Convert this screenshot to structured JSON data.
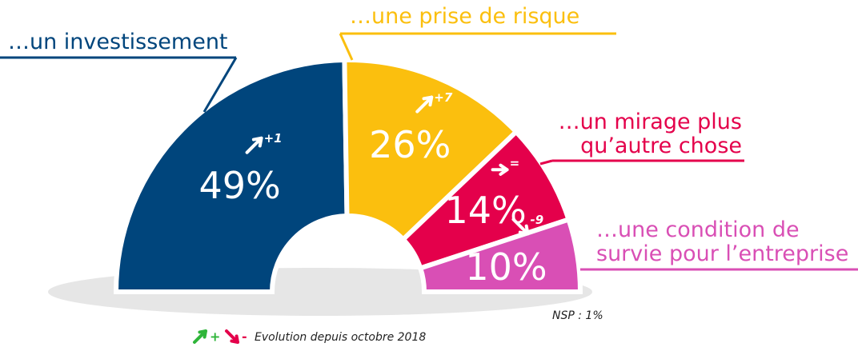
{
  "chart_data": {
    "type": "pie",
    "half": true,
    "categories": [
      "…un investissement",
      "…une prise de risque",
      "…un mirage plus\nqu’autre chose",
      "…une condition de\nsurvie pour l’entreprise"
    ],
    "values": [
      49,
      26,
      14,
      10
    ],
    "value_labels": [
      "49%",
      "26%",
      "14%",
      "10%"
    ],
    "colors": [
      "#00457c",
      "#fbbf0e",
      "#e4004b",
      "#d94fb5"
    ],
    "changes": [
      "+1",
      "+7",
      "=",
      "-9"
    ],
    "trends": [
      "up",
      "up",
      "flat",
      "down"
    ],
    "note": "NSP : 1%",
    "legend": {
      "up": "+",
      "down": "-",
      "text": "Evolution depuis octobre 2018",
      "up_color": "#2fb53a",
      "down_color": "#e4004b"
    }
  }
}
